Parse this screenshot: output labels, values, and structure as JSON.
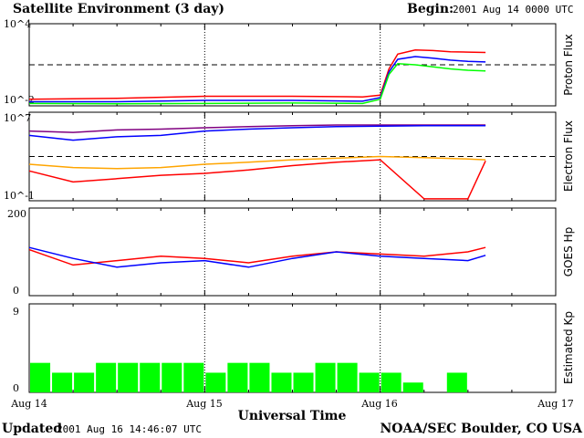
{
  "title": "Satellite Environment (3 day)",
  "begin_label": "Begin:",
  "begin_value": "2001 Aug 14 0000 UTC",
  "updated_label": "Updated",
  "updated_value": "2001 Aug 16 14:46:07 UTC",
  "credit": "NOAA/SEC Boulder, CO USA",
  "colors": {
    "red": "#ff0000",
    "blue": "#0000ff",
    "green": "#00ff00",
    "orange": "#ffa500",
    "purple": "#800080",
    "bar": "#00ff00"
  },
  "chart_data": [
    {
      "type": "line",
      "ylabel": "Proton Flux",
      "yscale": "log",
      "ylim": [
        0.01,
        10000
      ],
      "ytick_labels": [
        "10^4",
        "10^-2"
      ],
      "threshold": 10,
      "x": [
        0.0,
        0.5,
        1.0,
        1.5,
        1.9,
        2.0,
        2.05,
        2.1,
        2.2,
        2.3,
        2.4,
        2.5,
        2.6
      ],
      "series": [
        {
          "values": [
            0.03,
            0.035,
            0.05,
            0.05,
            0.045,
            0.06,
            5,
            60,
            120,
            110,
            90,
            85,
            80
          ]
        },
        {
          "values": [
            0.02,
            0.02,
            0.025,
            0.025,
            0.022,
            0.04,
            3,
            25,
            40,
            30,
            22,
            18,
            16
          ]
        },
        {
          "values": [
            0.015,
            0.014,
            0.015,
            0.016,
            0.015,
            0.03,
            2,
            12,
            10,
            7,
            5,
            4,
            3.5
          ]
        }
      ]
    },
    {
      "type": "line",
      "ylabel": "Electron Flux",
      "yscale": "log",
      "ylim": [
        0.1,
        10000000
      ],
      "ytick_labels": [
        "10^7",
        "10^-1"
      ],
      "threshold": 1000,
      "x": [
        0.0,
        0.25,
        0.5,
        0.75,
        1.0,
        1.25,
        1.5,
        1.75,
        2.0,
        2.25,
        2.5,
        2.6
      ],
      "series": [
        {
          "values": [
            200000,
            150000,
            250000,
            300000,
            400000,
            500000,
            600000,
            700000,
            700000,
            700000,
            700000,
            700000
          ]
        },
        {
          "values": [
            80000,
            30000,
            60000,
            80000,
            200000,
            300000,
            400000,
            500000,
            550000,
            600000,
            600000,
            600000
          ]
        },
        {
          "values": [
            200,
            100,
            80,
            100,
            200,
            300,
            500,
            700,
            1000,
            800,
            600,
            500
          ]
        },
        {
          "values": [
            50,
            5,
            10,
            20,
            30,
            60,
            150,
            300,
            500,
            0.15,
            0.15,
            400
          ]
        }
      ]
    },
    {
      "type": "line",
      "ylabel": "GOES Hp",
      "ylim": [
        0,
        200
      ],
      "ytick_labels": [
        "200",
        "0"
      ],
      "x": [
        0.0,
        0.25,
        0.5,
        0.75,
        1.0,
        1.25,
        1.5,
        1.75,
        2.0,
        2.25,
        2.5,
        2.6
      ],
      "series": [
        {
          "values": [
            105,
            70,
            80,
            90,
            85,
            75,
            90,
            100,
            95,
            90,
            100,
            110
          ]
        },
        {
          "values": [
            110,
            85,
            65,
            75,
            80,
            65,
            85,
            100,
            90,
            85,
            80,
            92
          ]
        }
      ]
    },
    {
      "type": "bar",
      "ylabel": "Estimated Kp",
      "ylim": [
        0,
        9
      ],
      "ytick_labels": [
        "9",
        "0"
      ],
      "x_start": 0.0,
      "bar_width_days": 0.125,
      "values": [
        3,
        2,
        2,
        3,
        3,
        3,
        3,
        3,
        2,
        3,
        3,
        2,
        2,
        3,
        3,
        2,
        2,
        1,
        0,
        2
      ]
    }
  ],
  "x_axis": {
    "label": "Universal Time",
    "range_days": [
      0,
      3
    ],
    "ticks": [
      {
        "pos": 0,
        "label": "Aug 14"
      },
      {
        "pos": 1,
        "label": "Aug 15"
      },
      {
        "pos": 2,
        "label": "Aug 16"
      },
      {
        "pos": 3,
        "label": "Aug 17"
      }
    ]
  }
}
